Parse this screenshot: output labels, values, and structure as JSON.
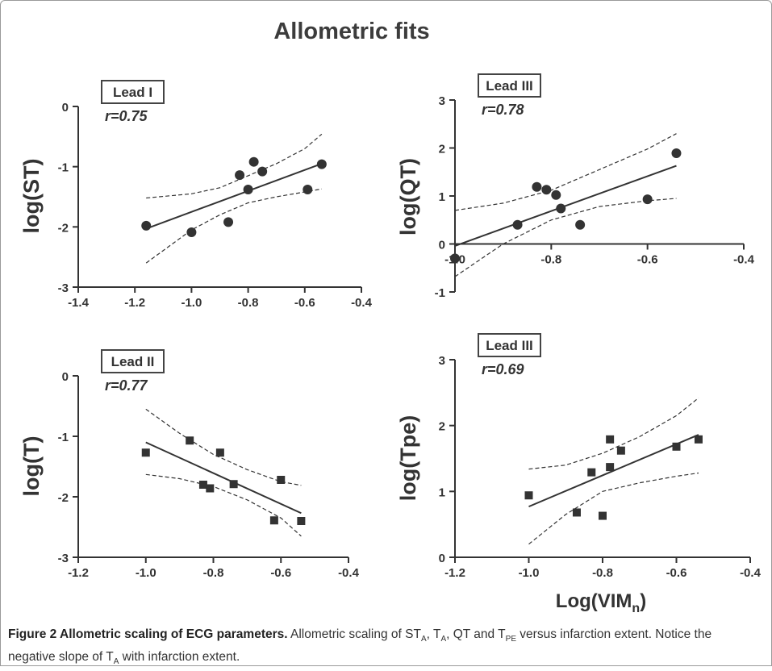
{
  "figure": {
    "title": "Allometric fits",
    "shared_xlabel": "Log(VIM",
    "shared_xlabel_sub": "n",
    "shared_xlabel_close": ")"
  },
  "caption": {
    "bold": "Figure 2 Allometric scaling of ECG parameters.",
    "p1": " Allometric scaling of ST",
    "s1": "A",
    "p2": ", T",
    "s2": "A",
    "p3": ", QT and T",
    "s3": "PE",
    "p4": " versus infarction extent. Notice the negative slope of T",
    "s4": "A",
    "p5": " with infarction extent."
  },
  "chart_data": [
    {
      "type": "scatter",
      "lead": "Lead I",
      "r": "r=0.75",
      "ylabel": "log(ST)",
      "marker": "circle",
      "xlim": [
        -1.4,
        -0.4
      ],
      "ylim": [
        -3,
        0
      ],
      "xticks": [
        "-1.4",
        "-1.2",
        "-1.0",
        "-0.8",
        "-0.6",
        "-0.4"
      ],
      "xtick_values": [
        -1.4,
        -1.2,
        -1.0,
        -0.8,
        -0.6,
        -0.4
      ],
      "yticks": [
        "0",
        "-1",
        "-2",
        "-3"
      ],
      "ytick_values": [
        0,
        -1,
        -2,
        -3
      ],
      "points": [
        [
          -1.16,
          -1.98
        ],
        [
          -1.0,
          -2.09
        ],
        [
          -0.87,
          -1.92
        ],
        [
          -0.83,
          -1.14
        ],
        [
          -0.8,
          -1.38
        ],
        [
          -0.78,
          -0.92
        ],
        [
          -0.75,
          -1.08
        ],
        [
          -0.59,
          -1.38
        ],
        [
          -0.54,
          -0.96
        ]
      ],
      "fit": [
        [
          -1.16,
          -2.03
        ],
        [
          -0.54,
          -0.95
        ]
      ],
      "ci_upper": [
        [
          -1.16,
          -1.52
        ],
        [
          -1.0,
          -1.45
        ],
        [
          -0.9,
          -1.35
        ],
        [
          -0.8,
          -1.15
        ],
        [
          -0.7,
          -0.95
        ],
        [
          -0.6,
          -0.7
        ],
        [
          -0.54,
          -0.46
        ]
      ],
      "ci_lower": [
        [
          -1.16,
          -2.6
        ],
        [
          -1.0,
          -2.05
        ],
        [
          -0.9,
          -1.8
        ],
        [
          -0.8,
          -1.6
        ],
        [
          -0.7,
          -1.5
        ],
        [
          -0.6,
          -1.42
        ],
        [
          -0.54,
          -1.37
        ]
      ]
    },
    {
      "type": "scatter",
      "lead": "Lead III",
      "r": "r=0.78",
      "ylabel": "log(QT)",
      "marker": "circle",
      "xlim": [
        -1.0,
        -0.4
      ],
      "ylim": [
        -1,
        3
      ],
      "x_axis_at": 0,
      "xticks": [
        "-1.0",
        "-0.8",
        "-0.6",
        "-0.4"
      ],
      "xtick_values": [
        -1.0,
        -0.8,
        -0.6,
        -0.4
      ],
      "yticks": [
        "3",
        "2",
        "1",
        "0",
        "-1"
      ],
      "ytick_values": [
        3,
        2,
        1,
        0,
        -1
      ],
      "points": [
        [
          -1.0,
          -0.3
        ],
        [
          -0.87,
          0.4
        ],
        [
          -0.83,
          1.19
        ],
        [
          -0.81,
          1.13
        ],
        [
          -0.79,
          1.02
        ],
        [
          -0.78,
          0.74
        ],
        [
          -0.74,
          0.4
        ],
        [
          -0.6,
          0.93
        ],
        [
          -0.54,
          1.89
        ]
      ],
      "fit": [
        [
          -1.0,
          -0.04
        ],
        [
          -0.54,
          1.63
        ]
      ],
      "ci_upper": [
        [
          -1.0,
          0.7
        ],
        [
          -0.9,
          0.85
        ],
        [
          -0.8,
          1.12
        ],
        [
          -0.7,
          1.55
        ],
        [
          -0.6,
          1.98
        ],
        [
          -0.54,
          2.3
        ]
      ],
      "ci_lower": [
        [
          -1.0,
          -0.68
        ],
        [
          -0.9,
          0.0
        ],
        [
          -0.8,
          0.5
        ],
        [
          -0.7,
          0.78
        ],
        [
          -0.6,
          0.9
        ],
        [
          -0.54,
          0.95
        ]
      ]
    },
    {
      "type": "scatter",
      "lead": "Lead II",
      "r": "r=0.77",
      "ylabel": "log(T)",
      "marker": "square",
      "xlim": [
        -1.2,
        -0.4
      ],
      "ylim": [
        -3,
        0
      ],
      "xticks": [
        "-1.2",
        "-1.0",
        "-0.8",
        "-0.6",
        "-0.4"
      ],
      "xtick_values": [
        -1.2,
        -1.0,
        -0.8,
        -0.6,
        -0.4
      ],
      "yticks": [
        "0",
        "-1",
        "-2",
        "-3"
      ],
      "ytick_values": [
        0,
        -1,
        -2,
        -3
      ],
      "points": [
        [
          -1.0,
          -1.27
        ],
        [
          -0.87,
          -1.07
        ],
        [
          -0.83,
          -1.8
        ],
        [
          -0.81,
          -1.86
        ],
        [
          -0.78,
          -1.27
        ],
        [
          -0.74,
          -1.79
        ],
        [
          -0.62,
          -2.39
        ],
        [
          -0.6,
          -1.72
        ],
        [
          -0.54,
          -2.4
        ]
      ],
      "fit": [
        [
          -1.0,
          -1.1
        ],
        [
          -0.54,
          -2.27
        ]
      ],
      "ci_upper": [
        [
          -1.0,
          -0.55
        ],
        [
          -0.9,
          -0.95
        ],
        [
          -0.8,
          -1.3
        ],
        [
          -0.7,
          -1.55
        ],
        [
          -0.6,
          -1.75
        ],
        [
          -0.54,
          -1.81
        ]
      ],
      "ci_lower": [
        [
          -1.0,
          -1.63
        ],
        [
          -0.9,
          -1.7
        ],
        [
          -0.8,
          -1.83
        ],
        [
          -0.7,
          -2.05
        ],
        [
          -0.6,
          -2.35
        ],
        [
          -0.54,
          -2.65
        ]
      ]
    },
    {
      "type": "scatter",
      "lead": "Lead III",
      "r": "r=0.69",
      "ylabel": "log(Tpe)",
      "marker": "square",
      "xlim": [
        -1.2,
        -0.4
      ],
      "ylim": [
        0,
        3
      ],
      "xticks": [
        "-1.2",
        "-1.0",
        "-0.8",
        "-0.6",
        "-0.4"
      ],
      "xtick_values": [
        -1.2,
        -1.0,
        -0.8,
        -0.6,
        -0.4
      ],
      "yticks": [
        "3",
        "2",
        "1",
        "0"
      ],
      "ytick_values": [
        3,
        2,
        1,
        0
      ],
      "points": [
        [
          -1.0,
          0.94
        ],
        [
          -0.87,
          0.68
        ],
        [
          -0.83,
          1.29
        ],
        [
          -0.8,
          0.63
        ],
        [
          -0.78,
          1.37
        ],
        [
          -0.78,
          1.79
        ],
        [
          -0.75,
          1.62
        ],
        [
          -0.6,
          1.68
        ],
        [
          -0.54,
          1.79
        ]
      ],
      "fit": [
        [
          -1.0,
          0.77
        ],
        [
          -0.54,
          1.86
        ]
      ],
      "ci_upper": [
        [
          -1.0,
          1.34
        ],
        [
          -0.9,
          1.4
        ],
        [
          -0.8,
          1.58
        ],
        [
          -0.7,
          1.83
        ],
        [
          -0.6,
          2.15
        ],
        [
          -0.54,
          2.42
        ]
      ],
      "ci_lower": [
        [
          -1.0,
          0.2
        ],
        [
          -0.9,
          0.65
        ],
        [
          -0.8,
          1.0
        ],
        [
          -0.7,
          1.13
        ],
        [
          -0.6,
          1.23
        ],
        [
          -0.54,
          1.28
        ]
      ]
    }
  ]
}
